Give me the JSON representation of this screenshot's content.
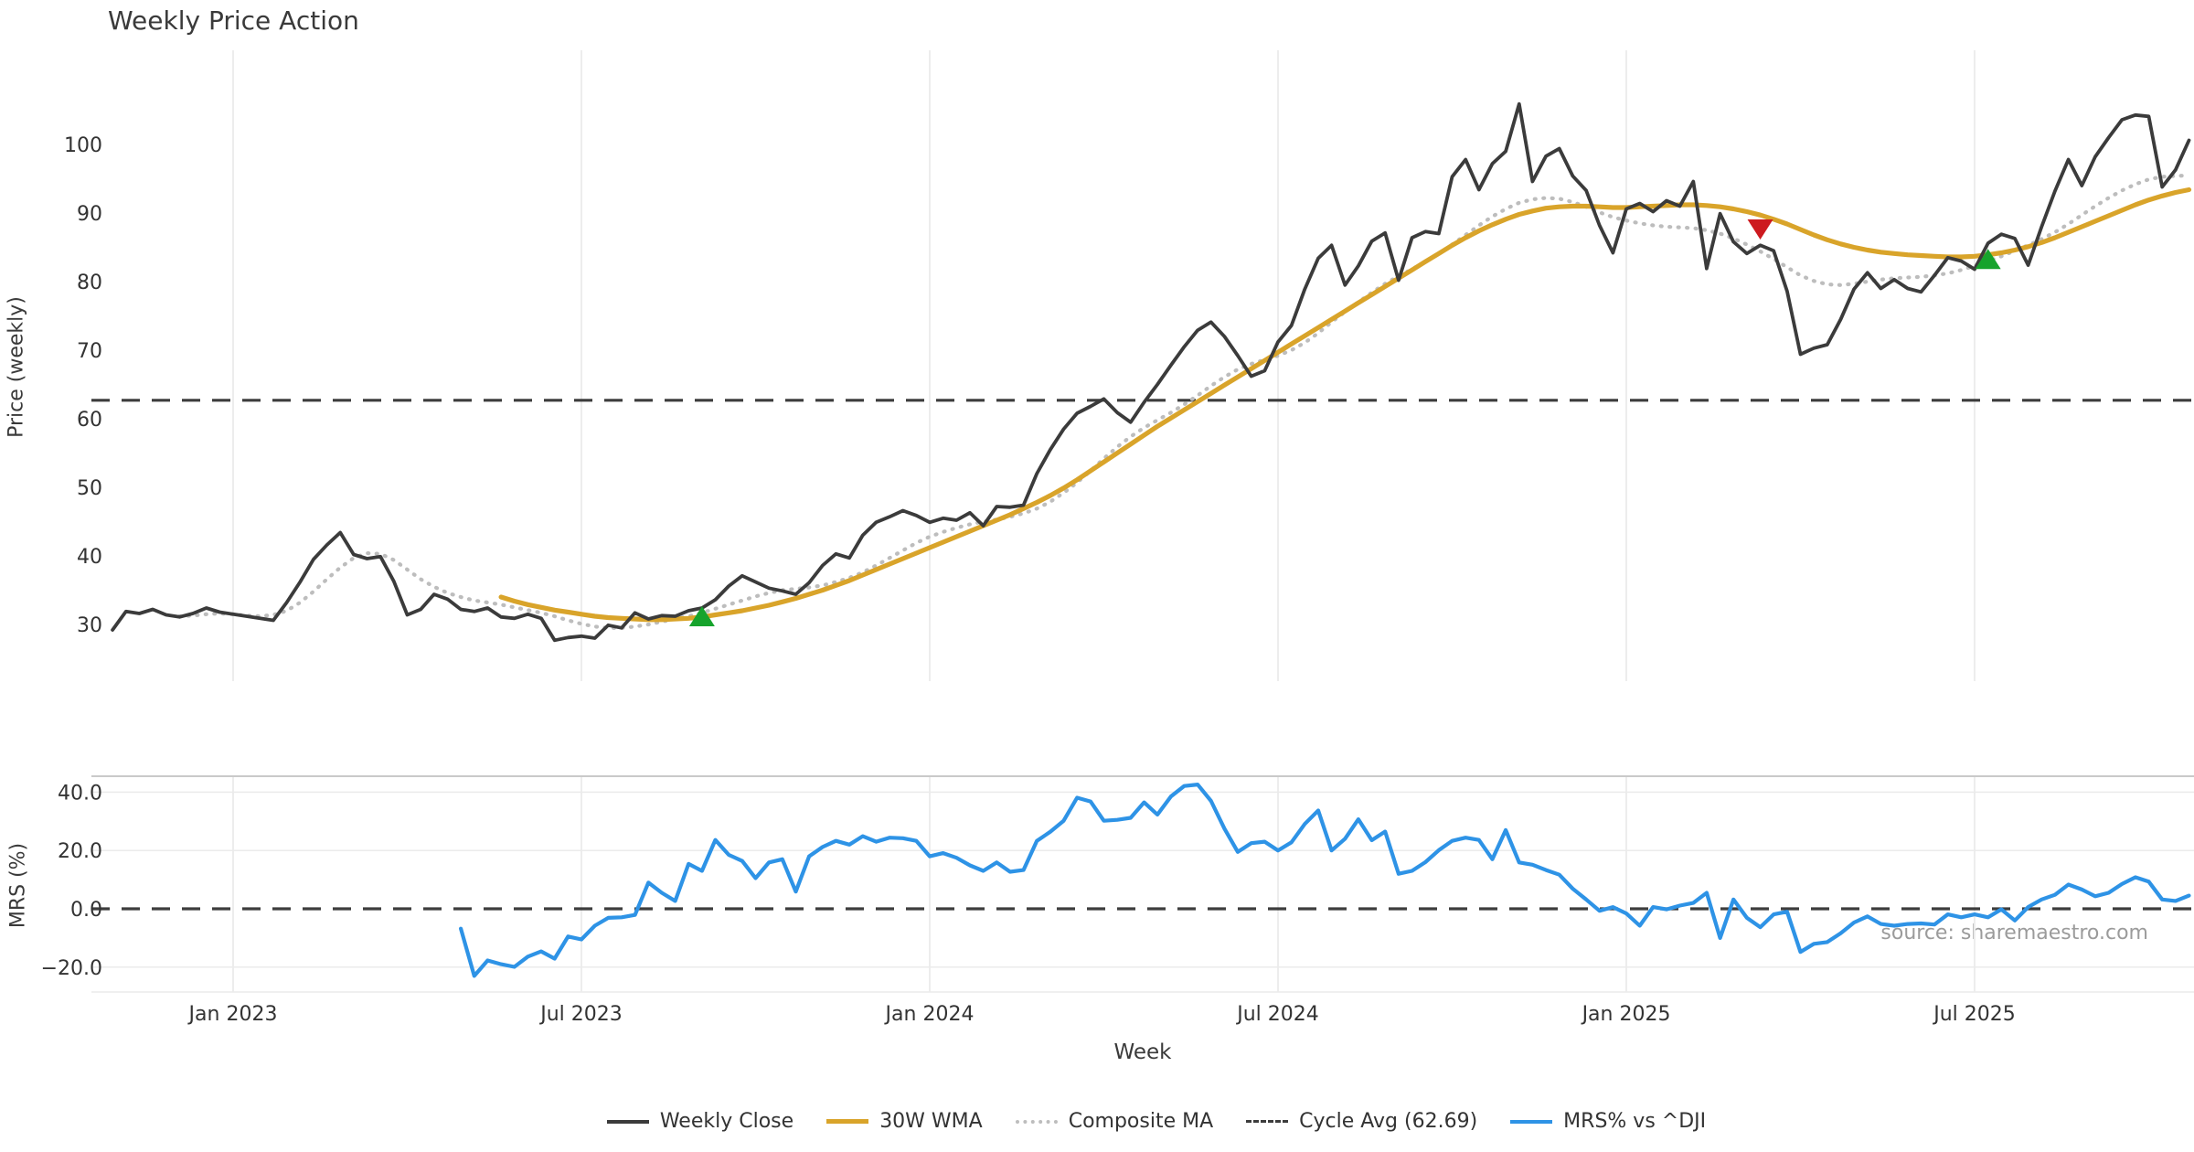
{
  "title": "Weekly Price Action",
  "source": "source: sharemaestro.com",
  "axes": {
    "price_label": "Price (weekly)",
    "mrs_label": "MRS (%)",
    "x_label": "Week"
  },
  "legend": {
    "items": [
      {
        "label": "Weekly Close",
        "style": "solid-dark"
      },
      {
        "label": "30W WMA",
        "style": "solid-gold"
      },
      {
        "label": "Composite MA",
        "style": "dotted-gray"
      },
      {
        "label": "Cycle Avg (62.69)",
        "style": "dashed-dark"
      },
      {
        "label": "MRS% vs ^DJI",
        "style": "solid-blue"
      }
    ]
  },
  "colors": {
    "weekly_close": "#3b3b3b",
    "wma": "#d9a42a",
    "composite": "#bdbdbd",
    "cycle_avg": "#3d3d3d",
    "mrs": "#2e93e6",
    "buy_marker": "#16a32c",
    "sell_marker": "#cd1a1f",
    "grid": "#ededed",
    "grid_h": "#ebebeb",
    "panel_border": "#c9c9c9",
    "tick_text": "#333333"
  },
  "chart_data": [
    {
      "type": "line",
      "panel": "price",
      "title": "Weekly Price Action",
      "ylabel": "Price (weekly)",
      "ylim": [
        21.7,
        113.7
      ],
      "yticks": [
        30,
        40,
        50,
        60,
        70,
        80,
        90,
        100
      ],
      "ytick_labels": [
        "30",
        "40",
        "50",
        "60",
        "70",
        "80",
        "90",
        "100"
      ],
      "x_tick_weeks": [
        9,
        35,
        61,
        87,
        113,
        139
      ],
      "x_tick_labels": [
        "Jan 2023",
        "Jul 2023",
        "Jan 2024",
        "Jul 2024",
        "Jan 2025",
        "Jul 2025"
      ],
      "grid": "vertical-only",
      "ref_line": {
        "name": "Cycle Avg",
        "value": 62.69
      },
      "series": [
        {
          "name": "Weekly Close",
          "style": "solid",
          "width": 3.8,
          "color": "#3b3b3b",
          "start_week": 0,
          "values": [
            29.2,
            31.9,
            31.6,
            32.2,
            31.4,
            31.1,
            31.6,
            32.4,
            31.8,
            31.5,
            31.2,
            30.9,
            30.6,
            33.2,
            36.2,
            39.5,
            41.6,
            43.4,
            40.2,
            39.6,
            39.9,
            36.3,
            31.4,
            32.2,
            34.4,
            33.7,
            32.2,
            31.9,
            32.4,
            31.1,
            30.9,
            31.5,
            30.9,
            27.7,
            28.1,
            28.3,
            28.0,
            29.9,
            29.5,
            31.7,
            30.8,
            31.3,
            31.2,
            32.0,
            32.4,
            33.6,
            35.6,
            37.1,
            36.2,
            35.3,
            34.9,
            34.4,
            36.1,
            38.6,
            40.3,
            39.7,
            43.0,
            44.9,
            45.7,
            46.6,
            45.9,
            44.9,
            45.5,
            45.2,
            46.3,
            44.4,
            47.2,
            47.1,
            47.4,
            52.0,
            55.5,
            58.5,
            60.8,
            61.8,
            62.9,
            60.9,
            59.5,
            62.4,
            65.0,
            67.8,
            70.5,
            72.9,
            74.1,
            72.0,
            69.2,
            66.2,
            67.0,
            71.2,
            73.6,
            78.9,
            83.4,
            85.3,
            79.5,
            82.3,
            85.9,
            87.1,
            80.2,
            86.4,
            87.3,
            87.0,
            95.3,
            97.8,
            93.4,
            97.2,
            99.0,
            105.9,
            94.6,
            98.3,
            99.4,
            95.4,
            93.3,
            88.2,
            84.2,
            90.6,
            91.4,
            90.2,
            91.8,
            91.0,
            94.6,
            81.9,
            89.9,
            85.8,
            84.1,
            85.3,
            84.5,
            78.6,
            69.4,
            70.3,
            70.8,
            74.5,
            78.9,
            81.3,
            79.0,
            80.3,
            79.0,
            78.5,
            80.9,
            83.5,
            83.0,
            81.8,
            85.6,
            86.9,
            86.3,
            82.4,
            88.0,
            93.2,
            97.8,
            94.0,
            98.2,
            101.0,
            103.6,
            104.3,
            104.1,
            93.8,
            96.3,
            100.6
          ]
        },
        {
          "name": "30W WMA",
          "style": "solid",
          "width": 5.2,
          "color": "#d9a42a",
          "start_week": 29,
          "values": [
            34.0,
            33.4,
            32.9,
            32.5,
            32.1,
            31.8,
            31.5,
            31.2,
            31.0,
            30.9,
            30.8,
            30.7,
            30.7,
            30.8,
            30.9,
            31.1,
            31.4,
            31.7,
            32.0,
            32.4,
            32.8,
            33.3,
            33.8,
            34.4,
            35.0,
            35.7,
            36.4,
            37.2,
            38.0,
            38.8,
            39.6,
            40.4,
            41.2,
            42.0,
            42.8,
            43.6,
            44.4,
            45.2,
            46.0,
            46.9,
            47.8,
            48.8,
            49.9,
            51.1,
            52.4,
            53.7,
            55.0,
            56.3,
            57.6,
            58.9,
            60.1,
            61.3,
            62.5,
            63.7,
            64.9,
            66.1,
            67.3,
            68.5,
            69.7,
            70.9,
            72.1,
            73.3,
            74.5,
            75.7,
            76.9,
            78.1,
            79.3,
            80.5,
            81.7,
            82.9,
            84.1,
            85.3,
            86.4,
            87.4,
            88.3,
            89.1,
            89.8,
            90.3,
            90.7,
            90.9,
            91.0,
            91.0,
            90.9,
            90.8,
            90.8,
            90.9,
            91.0,
            91.1,
            91.2,
            91.2,
            91.1,
            90.9,
            90.6,
            90.2,
            89.7,
            89.1,
            88.4,
            87.6,
            86.8,
            86.1,
            85.5,
            85.0,
            84.6,
            84.3,
            84.1,
            83.9,
            83.8,
            83.7,
            83.6,
            83.6,
            83.7,
            83.9,
            84.2,
            84.6,
            85.1,
            85.7,
            86.4,
            87.2,
            88.0,
            88.8,
            89.6,
            90.4,
            91.2,
            91.9,
            92.5,
            93.0,
            93.4
          ]
        },
        {
          "name": "Composite MA",
          "style": "dotted",
          "width": 4.2,
          "color": "#bdbdbd",
          "start_week": 5,
          "values": [
            31.2,
            31.3,
            31.5,
            31.6,
            31.5,
            31.3,
            31.2,
            31.4,
            32.0,
            33.2,
            34.8,
            36.6,
            38.3,
            39.7,
            40.4,
            40.3,
            39.4,
            38.0,
            36.6,
            35.5,
            34.6,
            34.0,
            33.5,
            33.2,
            32.9,
            32.5,
            32.1,
            31.7,
            31.2,
            30.6,
            30.1,
            29.7,
            29.5,
            29.5,
            29.7,
            30.0,
            30.4,
            30.8,
            31.2,
            31.7,
            32.3,
            32.9,
            33.5,
            34.1,
            34.6,
            35.0,
            35.2,
            35.4,
            35.7,
            36.2,
            36.8,
            37.6,
            38.6,
            39.7,
            40.8,
            41.9,
            42.8,
            43.5,
            44.1,
            44.6,
            45.0,
            45.3,
            45.7,
            46.2,
            46.9,
            47.9,
            49.2,
            50.7,
            52.4,
            54.2,
            55.9,
            57.4,
            58.7,
            59.8,
            60.9,
            62.1,
            63.4,
            64.8,
            66.1,
            67.2,
            68.0,
            68.6,
            69.2,
            70.0,
            71.1,
            72.5,
            74.1,
            75.6,
            77.0,
            78.4,
            79.7,
            80.8,
            81.8,
            82.9,
            84.1,
            85.4,
            86.8,
            88.2,
            89.5,
            90.6,
            91.5,
            92.0,
            92.2,
            92.1,
            91.6,
            90.9,
            90.1,
            89.4,
            88.9,
            88.5,
            88.2,
            88.0,
            87.9,
            87.8,
            87.5,
            87.0,
            86.3,
            85.4,
            84.4,
            83.3,
            82.1,
            80.9,
            80.1,
            79.6,
            79.5,
            79.7,
            80.0,
            80.3,
            80.5,
            80.6,
            80.7,
            80.9,
            81.2,
            81.7,
            82.3,
            83.0,
            83.7,
            84.5,
            85.3,
            86.2,
            87.2,
            88.4,
            89.7,
            91.0,
            92.2,
            93.3,
            94.2,
            94.9,
            95.3,
            95.4,
            95.5
          ]
        }
      ],
      "markers": [
        {
          "week": 44,
          "value": 31.2,
          "type": "buy"
        },
        {
          "week": 123,
          "value": 87.6,
          "type": "sell"
        },
        {
          "week": 140,
          "value": 83.3,
          "type": "buy"
        }
      ]
    },
    {
      "type": "line",
      "panel": "mrs",
      "ylabel": "MRS (%)",
      "ylim": [
        -28.5,
        45.5
      ],
      "yticks": [
        -20,
        0,
        20,
        40
      ],
      "ytick_labels": [
        "−20.0",
        "0.0",
        "20.0",
        "40.0"
      ],
      "grid": "both",
      "ref_line": {
        "name": "zero",
        "value": 0
      },
      "series": [
        {
          "name": "MRS% vs ^DJI",
          "style": "solid",
          "width": 4.2,
          "color": "#2e93e6",
          "start_week": 26,
          "values": [
            -6.8,
            -23.0,
            -17.7,
            -19.0,
            -19.9,
            -16.4,
            -14.6,
            -17.1,
            -9.5,
            -10.5,
            -5.8,
            -3.1,
            -2.9,
            -2.1,
            9.0,
            5.5,
            2.7,
            15.4,
            13.0,
            23.6,
            18.5,
            16.4,
            10.5,
            15.9,
            17.0,
            5.9,
            18.0,
            21.2,
            23.3,
            22.0,
            24.9,
            23.0,
            24.4,
            24.2,
            23.3,
            18.0,
            19.1,
            17.5,
            14.9,
            13.0,
            15.9,
            12.7,
            13.3,
            23.3,
            26.4,
            30.2,
            38.1,
            36.8,
            30.2,
            30.5,
            31.2,
            36.5,
            32.3,
            38.5,
            42.1,
            42.6,
            37.0,
            27.5,
            19.5,
            22.5,
            23.0,
            20.0,
            22.8,
            29.1,
            33.7,
            20.0,
            24.0,
            30.7,
            23.5,
            26.5,
            12.0,
            13.0,
            16.0,
            20.1,
            23.3,
            24.4,
            23.6,
            17.0,
            27.0,
            15.9,
            15.1,
            13.3,
            11.7,
            6.9,
            3.2,
            -0.7,
            0.6,
            -1.6,
            -5.8,
            0.6,
            -0.2,
            1.1,
            2.0,
            5.5,
            -10.0,
            3.2,
            -3.1,
            -6.3,
            -1.9,
            -1.0,
            -14.8,
            -12.0,
            -11.4,
            -8.4,
            -4.7,
            -2.6,
            -5.2,
            -5.8,
            -5.2,
            -5.0,
            -5.4,
            -1.9,
            -2.9,
            -1.9,
            -2.9,
            -0.2,
            -4.0,
            0.6,
            3.2,
            4.8,
            8.3,
            6.6,
            4.3,
            5.5,
            8.5,
            10.8,
            9.3,
            3.2,
            2.7,
            4.5
          ]
        }
      ]
    }
  ]
}
